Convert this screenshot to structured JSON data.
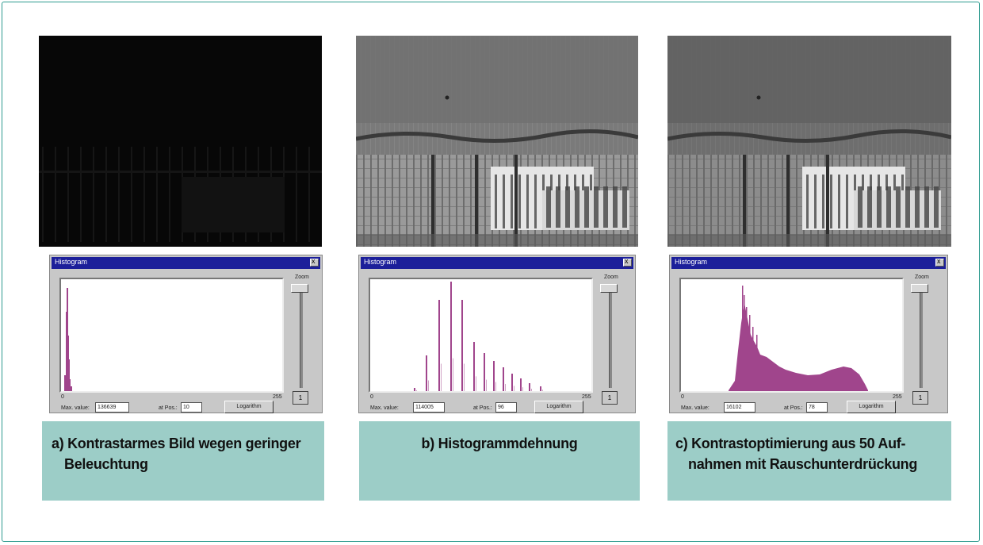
{
  "panels": [
    {
      "photo": "dark",
      "window_title": "Histogram",
      "close_glyph": "x",
      "tick_start": "0",
      "tick_end": "255",
      "zoom_label": "Zoom",
      "zoom_value": "1",
      "max_value_label": "Max. value:",
      "max_value": "136639",
      "at_pos_label": "at Pos.:",
      "at_pos": "10",
      "log_button": "Logarithm",
      "caption_lines": [
        "a) Kontrastarmes Bild wegen geringer",
        "Beleuchtung"
      ],
      "histogram_type": "narrow-peak"
    },
    {
      "photo": "stretched",
      "window_title": "Histogram",
      "close_glyph": "x",
      "tick_start": "0",
      "tick_end": "255",
      "zoom_label": "Zoom",
      "zoom_value": "1",
      "max_value_label": "Max. value:",
      "max_value": "114005",
      "at_pos_label": "at Pos.:",
      "at_pos": "96",
      "log_button": "Logarithm",
      "caption_lines": [
        "b)  Histogrammdehnung"
      ],
      "histogram_type": "comb"
    },
    {
      "photo": "optimized",
      "window_title": "Histogram",
      "close_glyph": "x",
      "tick_start": "0",
      "tick_end": "255",
      "zoom_label": "Zoom",
      "zoom_value": "1",
      "max_value_label": "Max. value:",
      "max_value": "16102",
      "at_pos_label": "at Pos.:",
      "at_pos": "78",
      "log_button": "Logarithm",
      "caption_lines": [
        "c) Kontrastoptimierung aus 50 Auf-",
        "nahmen mit Rauschunterdrückung"
      ],
      "histogram_type": "smooth"
    }
  ],
  "colors": {
    "frame": "#2d9a8e",
    "caption_bg": "#9ccdc7",
    "histogram": "#a0458c",
    "titlebar": "#1c1f9a"
  }
}
